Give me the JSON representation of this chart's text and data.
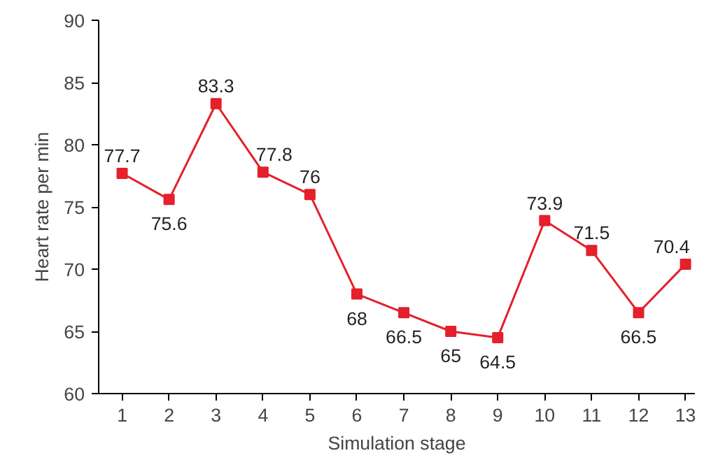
{
  "chart_data": {
    "type": "line",
    "xlabel": "Simulation stage",
    "ylabel": "Heart rate per min",
    "x": [
      1,
      2,
      3,
      4,
      5,
      6,
      7,
      8,
      9,
      10,
      11,
      12,
      13
    ],
    "series": [
      {
        "color": "#e3202b",
        "values": [
          77.7,
          75.6,
          83.3,
          77.8,
          76,
          68,
          66.5,
          65,
          64.5,
          73.9,
          71.5,
          66.5,
          70.4
        ]
      }
    ],
    "xlim": [
      0.5,
      13.2
    ],
    "xticks": [
      1,
      2,
      3,
      4,
      5,
      6,
      7,
      8,
      9,
      10,
      11,
      12,
      13
    ],
    "ylim": [
      60,
      90
    ],
    "yticks": [
      60,
      65,
      70,
      75,
      80,
      85,
      90
    ],
    "data_labels": true,
    "marker": "square",
    "line_style": "solid",
    "grid": false
  }
}
